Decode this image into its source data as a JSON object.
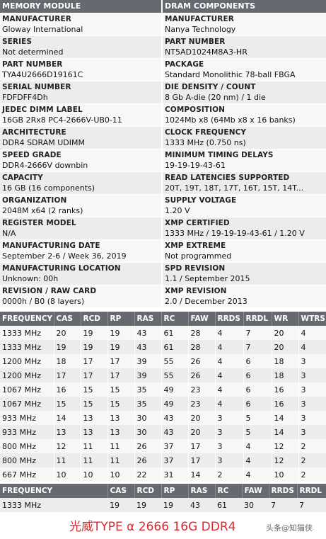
{
  "headers": {
    "memory_module": "MEMORY MODULE",
    "dram_components": "DRAM COMPONENTS"
  },
  "spec_rows": [
    {
      "left_label": "MANUFACTURER",
      "left_value": "Gloway International",
      "right_label": "MANUFACTURER",
      "right_value": "Nanya Technology"
    },
    {
      "left_label": "SERIES",
      "left_value": "Not determined",
      "right_label": "PART NUMBER",
      "right_value": "NT5AD1024M8A3-HR"
    },
    {
      "left_label": "PART NUMBER",
      "left_value": "TYA4U2666D19161C",
      "right_label": "PACKAGE",
      "right_value": "Standard Monolithic 78-ball FBGA"
    },
    {
      "left_label": "SERIAL NUMBER",
      "left_value": "FDFDFF4Dh",
      "right_label": "DIE DENSITY / COUNT",
      "right_value": "8 Gb A-die (20 nm) / 1 die"
    },
    {
      "left_label": "JEDEC DIMM LABEL",
      "left_value": "16GB 2Rx8 PC4-2666V-UB0-11",
      "right_label": "COMPOSITION",
      "right_value": "1024Mb x8 (64Mb x8 x 16 banks)"
    },
    {
      "left_label": "ARCHITECTURE",
      "left_value": "DDR4 SDRAM UDIMM",
      "right_label": "CLOCK FREQUENCY",
      "right_value": "1333 MHz (0.750 ns)"
    },
    {
      "left_label": "SPEED GRADE",
      "left_value": "DDR4-2666V downbin",
      "right_label": "MINIMUM TIMING DELAYS",
      "right_value": "19-19-19-43-61"
    },
    {
      "left_label": "CAPACITY",
      "left_value": "16 GB (16 components)",
      "right_label": "READ LATENCIES SUPPORTED",
      "right_value": "20T, 19T, 18T, 17T, 16T, 15T, 14T..."
    },
    {
      "left_label": "ORGANIZATION",
      "left_value": "2048M x64 (2 ranks)",
      "right_label": "SUPPLY VOLTAGE",
      "right_value": "1.20 V"
    },
    {
      "left_label": "REGISTER MODEL",
      "left_value": "N/A",
      "right_label": "XMP CERTIFIED",
      "right_value": "1333 MHz / 19-19-19-43-61 / 1.20 V"
    },
    {
      "left_label": "MANUFACTURING DATE",
      "left_value": "September 2-6 / Week 36, 2019",
      "right_label": "XMP EXTREME",
      "right_value": "Not programmed"
    },
    {
      "left_label": "MANUFACTURING LOCATION",
      "left_value": "Unknown: 00h",
      "right_label": "SPD REVISION",
      "right_value": "1.1 / September 2015"
    },
    {
      "left_label": "REVISION / RAW CARD",
      "left_value": "0000h / B0 (8 layers)",
      "right_label": "XMP REVISION",
      "right_value": "2.0 / December 2013"
    }
  ],
  "timing_table": {
    "columns": [
      "FREQUENCY",
      "CAS",
      "RCD",
      "RP",
      "RAS",
      "RC",
      "FAW",
      "RRDS",
      "RRDL",
      "WR",
      "WTRS"
    ],
    "rows": [
      [
        "1333 MHz",
        "20",
        "19",
        "19",
        "43",
        "61",
        "28",
        "4",
        "7",
        "20",
        "4"
      ],
      [
        "1333 MHz",
        "19",
        "19",
        "19",
        "43",
        "61",
        "28",
        "4",
        "7",
        "20",
        "4"
      ],
      [
        "1200 MHz",
        "18",
        "17",
        "17",
        "39",
        "55",
        "26",
        "4",
        "6",
        "18",
        "3"
      ],
      [
        "1200 MHz",
        "17",
        "17",
        "17",
        "39",
        "55",
        "26",
        "4",
        "6",
        "18",
        "3"
      ],
      [
        "1067 MHz",
        "16",
        "15",
        "15",
        "35",
        "49",
        "23",
        "4",
        "6",
        "16",
        "3"
      ],
      [
        "1067 MHz",
        "15",
        "15",
        "15",
        "35",
        "49",
        "23",
        "4",
        "6",
        "16",
        "3"
      ],
      [
        "933 MHz",
        "14",
        "13",
        "13",
        "30",
        "43",
        "20",
        "3",
        "5",
        "14",
        "3"
      ],
      [
        "933 MHz",
        "13",
        "13",
        "13",
        "30",
        "43",
        "20",
        "3",
        "5",
        "14",
        "3"
      ],
      [
        "800 MHz",
        "12",
        "11",
        "11",
        "26",
        "37",
        "17",
        "3",
        "4",
        "12",
        "2"
      ],
      [
        "800 MHz",
        "11",
        "11",
        "11",
        "26",
        "37",
        "17",
        "3",
        "4",
        "12",
        "2"
      ],
      [
        "667 MHz",
        "10",
        "10",
        "10",
        "22",
        "31",
        "14",
        "2",
        "4",
        "10",
        "2"
      ]
    ]
  },
  "xmp_table": {
    "columns": [
      "FREQUENCY",
      "CAS",
      "RCD",
      "RP",
      "RAS",
      "RC",
      "FAW",
      "RRDS",
      "RRDL"
    ],
    "rows": [
      [
        "1333 MHz",
        "19",
        "19",
        "19",
        "43",
        "61",
        "30",
        "7",
        "7"
      ]
    ]
  },
  "caption": "光威TYPE α 2666 16G DDR4",
  "watermark": "头条@知猫侠",
  "colors": {
    "header_bg": "#666a70",
    "caption": "#e0262f"
  }
}
